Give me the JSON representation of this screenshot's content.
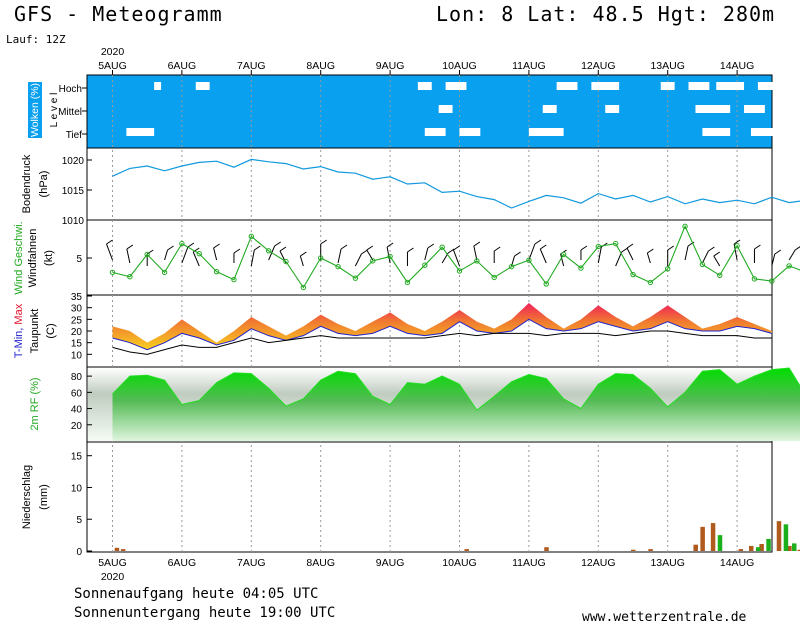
{
  "header": {
    "model_title": "GFS - Meteogramm",
    "location": "Lon: 8 Lat: 48.5 Hgt: 280m",
    "run": "Lauf: 12Z"
  },
  "year": "2020",
  "days": [
    "5AUG",
    "6AUG",
    "7AUG",
    "8AUG",
    "9AUG",
    "10AUG",
    "11AUG",
    "12AUG",
    "13AUG",
    "14AUG"
  ],
  "footer": {
    "sunrise": "Sonnenaufgang heute 04:05 UTC",
    "sunset": "Sonnenuntergang heute 19:00 UTC",
    "site": "www.wetterzentrale.de"
  },
  "colors": {
    "cloud_bg": "#0aa0f0",
    "pressure": "#1199dd",
    "wind": "#22aa22",
    "tmax_hot": "#e8105a",
    "tmin": "#2222cc",
    "humidity": "#22dd22",
    "precip_rain": "#b05a1e",
    "precip_conv": "#1bb01b"
  },
  "chart_data": [
    {
      "type": "heatmap",
      "ylabel": "Wolken (%)",
      "levels": [
        "Hoch",
        "Mittel",
        "Tief"
      ],
      "axis_letters": "L e v e l",
      "clear_patches": {
        "Hoch": [
          [
            0.6,
            0.7
          ],
          [
            1.2,
            1.4
          ],
          [
            4.4,
            4.6
          ],
          [
            4.8,
            5.1
          ],
          [
            6.4,
            6.7
          ],
          [
            6.9,
            7.3
          ],
          [
            7.9,
            8.1
          ],
          [
            8.3,
            8.6
          ],
          [
            8.7,
            9.1
          ],
          [
            9.3,
            9.6
          ]
        ],
        "Mittel": [
          [
            4.7,
            4.9
          ],
          [
            6.2,
            6.4
          ],
          [
            7.1,
            7.3
          ],
          [
            8.4,
            8.9
          ],
          [
            9.1,
            9.4
          ]
        ],
        "Tief": [
          [
            0.2,
            0.6
          ],
          [
            4.5,
            4.8
          ],
          [
            5.0,
            5.3
          ],
          [
            6.0,
            6.5
          ],
          [
            8.5,
            8.9
          ],
          [
            9.2,
            9.6
          ]
        ]
      }
    },
    {
      "type": "line",
      "ylabel": "Bodendruck",
      "unit": "(hPa)",
      "yticks": [
        1010,
        1015,
        1020
      ],
      "ylim": [
        1010,
        1022
      ],
      "x": [
        0,
        0.25,
        0.5,
        0.75,
        1.0,
        1.25,
        1.5,
        1.75,
        2.0,
        2.25,
        2.5,
        2.75,
        3.0,
        3.25,
        3.5,
        3.75,
        4.0,
        4.25,
        4.5,
        4.75,
        5.0,
        5.25,
        5.5,
        5.75,
        6.0,
        6.25,
        6.5,
        6.75,
        7.0,
        7.25,
        7.5,
        7.75,
        8.0,
        8.25,
        8.5,
        8.75,
        9.0,
        9.25,
        9.5,
        9.75,
        10.0
      ],
      "values": [
        1017.3,
        1018.6,
        1019.0,
        1018.2,
        1019.0,
        1019.6,
        1019.8,
        1018.8,
        1020.1,
        1019.7,
        1019.4,
        1018.5,
        1018.9,
        1018.0,
        1017.8,
        1016.8,
        1017.2,
        1016.0,
        1016.2,
        1014.6,
        1014.8,
        1013.9,
        1013.4,
        1012.0,
        1013.1,
        1014.1,
        1013.7,
        1012.8,
        1014.4,
        1013.5,
        1014.1,
        1013.0,
        1013.9,
        1012.7,
        1013.5,
        1012.9,
        1013.3,
        1012.7,
        1013.8,
        1012.9,
        1013.3
      ]
    },
    {
      "type": "line",
      "ylabel": "Windfahnen",
      "series_label": "Wind Geschwi.",
      "unit": "(kt)",
      "yticks": [
        5
      ],
      "ylim": [
        0,
        10
      ],
      "x": [
        0,
        0.25,
        0.5,
        0.75,
        1.0,
        1.25,
        1.5,
        1.75,
        2.0,
        2.25,
        2.5,
        2.75,
        3.0,
        3.25,
        3.5,
        3.75,
        4.0,
        4.25,
        4.5,
        4.75,
        5.0,
        5.25,
        5.5,
        5.75,
        6.0,
        6.25,
        6.5,
        6.75,
        7.0,
        7.25,
        7.5,
        7.75,
        8.0,
        8.25,
        8.5,
        8.75,
        9.0,
        9.25,
        9.5,
        9.75,
        10.0
      ],
      "values": [
        3.0,
        2.4,
        5.5,
        3.0,
        7.0,
        5.6,
        3.1,
        2.0,
        8.0,
        6.0,
        4.5,
        0.9,
        5.0,
        3.8,
        2.2,
        4.6,
        5.2,
        1.6,
        4.0,
        6.5,
        3.2,
        4.6,
        2.3,
        3.8,
        4.7,
        1.4,
        5.5,
        3.6,
        6.6,
        7.0,
        2.7,
        1.6,
        3.5,
        9.4,
        4.1,
        2.6,
        6.7,
        2.1,
        1.8,
        3.9,
        3.0
      ]
    },
    {
      "type": "area",
      "ylabel": "Taupunkt",
      "series_label_min": "T-Min,",
      "series_label_max": "Max",
      "unit": "(C)",
      "yticks": [
        10,
        15,
        20,
        25,
        30,
        35
      ],
      "ylim": [
        5,
        35
      ],
      "x": [
        0,
        0.25,
        0.5,
        0.75,
        1.0,
        1.25,
        1.5,
        1.75,
        2.0,
        2.25,
        2.5,
        2.75,
        3.0,
        3.25,
        3.5,
        3.75,
        4.0,
        4.25,
        4.5,
        4.75,
        5.0,
        5.25,
        5.5,
        5.75,
        6.0,
        6.25,
        6.5,
        6.75,
        7.0,
        7.25,
        7.5,
        7.75,
        8.0,
        8.25,
        8.5,
        8.75,
        9.0,
        9.25,
        9.5,
        9.75,
        10.0
      ],
      "tmax": [
        22,
        20,
        15,
        19,
        25,
        20,
        15,
        20,
        26,
        22,
        18,
        22,
        27,
        23,
        20,
        24,
        28,
        23,
        20,
        24,
        29,
        24,
        21,
        25,
        32,
        26,
        21,
        25,
        31,
        26,
        22,
        26,
        31,
        26,
        21,
        23,
        26,
        23,
        20,
        21,
        24
      ],
      "tmin": [
        17,
        15,
        12,
        15,
        19,
        17,
        14,
        16,
        21,
        18,
        16,
        18,
        22,
        19,
        18,
        19,
        22,
        19,
        18,
        19,
        24,
        20,
        19,
        20,
        25,
        21,
        20,
        21,
        24,
        22,
        20,
        21,
        24,
        21,
        20,
        20,
        22,
        21,
        19,
        19,
        20
      ],
      "dewpoint": [
        13,
        11,
        10,
        12,
        14,
        13,
        13,
        15,
        17,
        15,
        16,
        17,
        18,
        17,
        17,
        17,
        17,
        17,
        17,
        18,
        19,
        18,
        19,
        19,
        19,
        18,
        19,
        19,
        19,
        18,
        19,
        20,
        20,
        19,
        18,
        18,
        18,
        17,
        17,
        17,
        16
      ]
    },
    {
      "type": "area",
      "ylabel": "2m RF (%)",
      "yticks": [
        20,
        40,
        60,
        80
      ],
      "ylim": [
        0,
        90
      ],
      "x": [
        0,
        0.25,
        0.5,
        0.75,
        1.0,
        1.25,
        1.5,
        1.75,
        2.0,
        2.25,
        2.5,
        2.75,
        3.0,
        3.25,
        3.5,
        3.75,
        4.0,
        4.25,
        4.5,
        4.75,
        5.0,
        5.25,
        5.5,
        5.75,
        6.0,
        6.25,
        6.5,
        6.75,
        7.0,
        7.25,
        7.5,
        7.75,
        8.0,
        8.25,
        8.5,
        8.75,
        9.0,
        9.25,
        9.5,
        9.75,
        10.0
      ],
      "values": [
        58,
        80,
        81,
        75,
        45,
        50,
        72,
        84,
        83,
        65,
        43,
        52,
        75,
        86,
        83,
        55,
        45,
        72,
        70,
        80,
        70,
        38,
        55,
        73,
        82,
        77,
        52,
        40,
        70,
        83,
        82,
        65,
        42,
        60,
        86,
        88,
        70,
        80,
        88,
        90,
        55
      ]
    },
    {
      "type": "bar",
      "ylabel": "Niederschlag",
      "unit": "(mm)",
      "yticks": [
        0,
        5,
        10,
        15
      ],
      "ylim": [
        0,
        17
      ],
      "series": [
        {
          "name": "rain",
          "x": [
            0.06,
            0.15,
            5.1,
            6.25,
            7.5,
            7.75,
            8.4,
            8.5,
            8.65,
            9.05,
            9.2,
            9.35,
            9.6,
            9.75,
            9.9,
            10.0
          ],
          "values": [
            0.5,
            0.3,
            0.3,
            0.6,
            0.2,
            0.3,
            1.0,
            3.8,
            4.4,
            0.3,
            0.8,
            1.1,
            4.7,
            0.8,
            0.2,
            0.3
          ]
        },
        {
          "name": "convective",
          "x": [
            8.75,
            9.3,
            9.45,
            9.7,
            9.82
          ],
          "values": [
            2.5,
            0.6,
            1.9,
            4.2,
            1.2
          ]
        }
      ]
    }
  ]
}
